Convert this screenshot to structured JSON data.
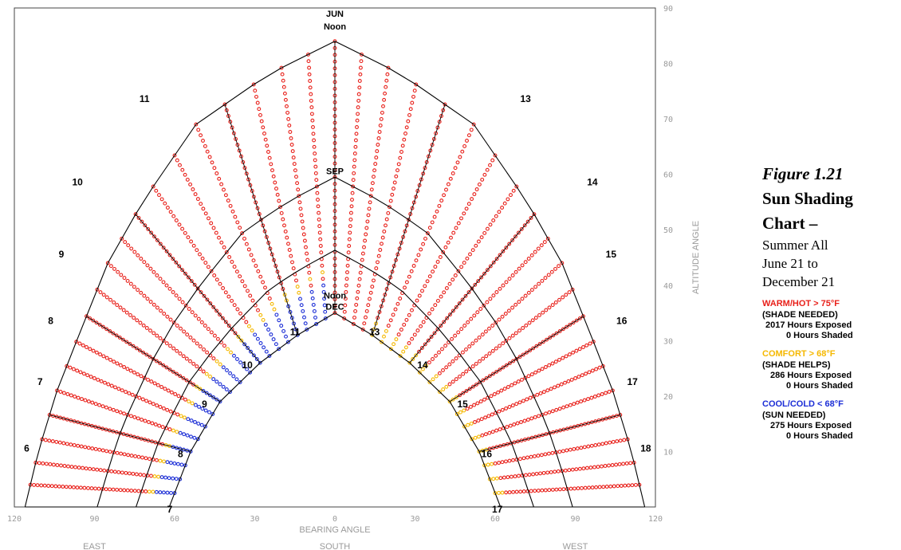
{
  "chart_data": {
    "type": "scatter",
    "title": "",
    "xlabel": "BEARING ANGLE",
    "ylabel": "ALTITUDE ANGLE",
    "xlim": [
      -120,
      120
    ],
    "ylim": [
      0,
      90
    ],
    "x_ticks": [
      "120",
      "90",
      "60",
      "30",
      "0",
      "30",
      "60",
      "90",
      "120"
    ],
    "y_ticks": [
      "10",
      "20",
      "30",
      "40",
      "50",
      "60",
      "70",
      "80",
      "90"
    ],
    "direction_labels": [
      "EAST",
      "SOUTH",
      "WEST"
    ],
    "grid": true,
    "legend_position": "right",
    "month_labels": {
      "june": [
        "JUN",
        "Noon"
      ],
      "september": "SEP",
      "december": [
        "Noon",
        "DEC"
      ]
    },
    "hour_labels_june": [
      "6",
      "7",
      "8",
      "9",
      "10",
      "11",
      "13",
      "14",
      "15",
      "16",
      "17",
      "18"
    ],
    "hour_labels_december": [
      "7",
      "8",
      "9",
      "10",
      "11",
      "13",
      "14",
      "15",
      "16",
      "17"
    ],
    "series": [
      {
        "name": "WARM/HOT > 75°F",
        "color": "#e8201a",
        "hours_exposed": 2017,
        "hours_shaded": 0
      },
      {
        "name": "COMFORT > 68°F",
        "color": "#f5b800",
        "hours_exposed": 286,
        "hours_shaded": 0
      },
      {
        "name": "COOL/COLD < 68°F",
        "color": "#1c2ed6",
        "hours_exposed": 275,
        "hours_shaded": 0
      }
    ],
    "paths": {
      "june": [
        [
          -116,
          0
        ],
        [
          -111,
          10
        ],
        [
          -104,
          21
        ],
        [
          -95,
          32
        ],
        [
          -85,
          44
        ],
        [
          -72,
          55
        ],
        [
          -52,
          69
        ],
        [
          -25,
          78
        ],
        [
          0,
          84
        ],
        [
          25,
          78
        ],
        [
          52,
          69
        ],
        [
          72,
          55
        ],
        [
          85,
          44
        ],
        [
          95,
          32
        ],
        [
          104,
          21
        ],
        [
          111,
          10
        ],
        [
          116,
          0
        ]
      ],
      "december": [
        [
          -62,
          0
        ],
        [
          -54,
          10
        ],
        [
          -43,
          19
        ],
        [
          -28,
          26
        ],
        [
          -14,
          31
        ],
        [
          0,
          35
        ],
        [
          14,
          31
        ],
        [
          28,
          26
        ],
        [
          43,
          19
        ],
        [
          54,
          10
        ],
        [
          62,
          0
        ]
      ]
    }
  },
  "side_panel": {
    "figure_label": "Figure 1.21",
    "title_line1": "Sun Shading",
    "title_line2": "Chart –",
    "subtitle_1": "Summer All",
    "subtitle_2": "June 21 to",
    "subtitle_3": "December 21"
  },
  "legend": [
    {
      "heading": "WARM/HOT > 75°F",
      "color": "#e8201a",
      "note": "(SHADE NEEDED)",
      "exposed": "2017 Hours Exposed",
      "shaded": "0 Hours Shaded"
    },
    {
      "heading": "COMFORT > 68°F",
      "color": "#f5b800",
      "note": "(SHADE HELPS)",
      "exposed": "286 Hours Exposed",
      "shaded": "0 Hours Shaded"
    },
    {
      "heading": "COOL/COLD < 68°F",
      "color": "#1c2ed6",
      "note": "(SUN NEEDED)",
      "exposed": "275 Hours Exposed",
      "shaded": "0 Hours Shaded"
    }
  ]
}
